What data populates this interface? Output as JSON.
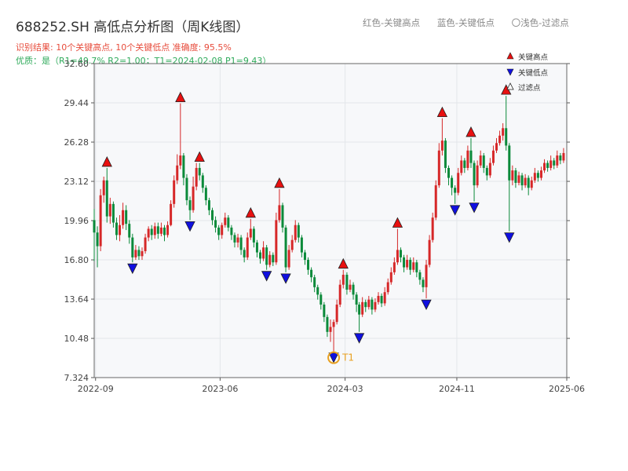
{
  "title": "688252.SH 高低点分析图（周K线图）",
  "info_line1": "识别结果: 10个关键高点, 10个关键低点  准确度: 95.5%",
  "info_line2": "优质：是（R1=49.7%  R2=1.00；T1=2024-02-08 P1=9.43）",
  "top_legend": [
    "红色-关键高点",
    "蓝色-关键低点",
    "〇浅色-过滤点"
  ],
  "colors": {
    "up": "#d62728",
    "down": "#0b8a3a",
    "high": "#e81010",
    "low": "#1010e0",
    "t1": "#e8a020",
    "bg": "#f7f8fa",
    "grid": "#e3e6ea"
  },
  "chart_data": {
    "type": "candlestick",
    "frequency": "weekly",
    "ylim": [
      7.324,
      32.6
    ],
    "y_ticks": [
      "7.324",
      "10.48",
      "13.64",
      "16.80",
      "19.96",
      "23.12",
      "26.28",
      "29.44",
      "32.60"
    ],
    "x_ticks": [
      "2022-09",
      "2023-06",
      "2024-03",
      "2024-11",
      "2025-06"
    ],
    "x_range": [
      "2022-08-29",
      "2025-06-30"
    ],
    "legend": [
      {
        "name": "关键高点",
        "marker": "red-up-triangle"
      },
      {
        "name": "关键低点",
        "marker": "blue-down-triangle"
      },
      {
        "name": "过滤点",
        "marker": "hollow-triangle"
      }
    ],
    "legend_position": "top-right",
    "key_highs": [
      {
        "date": "2022-09-26",
        "price": 24.2
      },
      {
        "date": "2023-03-06",
        "price": 29.4
      },
      {
        "date": "2023-04-17",
        "price": 24.6
      },
      {
        "date": "2023-08-07",
        "price": 20.1
      },
      {
        "date": "2023-10-09",
        "price": 22.5
      },
      {
        "date": "2024-02-26",
        "price": 16.0
      },
      {
        "date": "2024-06-24",
        "price": 19.3
      },
      {
        "date": "2024-09-30",
        "price": 28.2
      },
      {
        "date": "2024-12-02",
        "price": 26.6
      },
      {
        "date": "2025-02-17",
        "price": 30.0
      }
    ],
    "key_lows": [
      {
        "date": "2022-11-21",
        "price": 16.6
      },
      {
        "date": "2023-03-27",
        "price": 20.0
      },
      {
        "date": "2023-09-11",
        "price": 16.0
      },
      {
        "date": "2023-10-23",
        "price": 15.8
      },
      {
        "date": "2024-02-05",
        "price": 9.43
      },
      {
        "date": "2024-04-01",
        "price": 11.0
      },
      {
        "date": "2024-08-26",
        "price": 13.7
      },
      {
        "date": "2024-10-28",
        "price": 21.3
      },
      {
        "date": "2024-12-09",
        "price": 21.5
      },
      {
        "date": "2025-02-24",
        "price": 19.1
      }
    ],
    "t1": {
      "label": "T1",
      "date": "2024-02-05",
      "price": 9.43
    },
    "candles": [
      [
        "2022-08-29",
        20.0,
        19.0,
        20.9,
        16.7
      ],
      [
        "2022-09-05",
        19.0,
        17.9,
        19.5,
        16.2
      ],
      [
        "2022-09-12",
        17.9,
        22.0,
        22.5,
        17.5
      ],
      [
        "2022-09-19",
        22.0,
        23.2,
        23.5,
        21.4
      ],
      [
        "2022-09-26",
        23.2,
        20.3,
        24.2,
        19.8
      ],
      [
        "2022-10-03",
        20.3,
        21.3,
        21.8,
        19.7
      ],
      [
        "2022-10-10",
        21.3,
        19.8,
        21.5,
        19.4
      ],
      [
        "2022-10-17",
        19.8,
        18.8,
        20.2,
        18.4
      ],
      [
        "2022-10-24",
        18.8,
        19.6,
        20.4,
        18.3
      ],
      [
        "2022-10-31",
        19.6,
        20.8,
        21.4,
        19.3
      ],
      [
        "2022-11-07",
        20.8,
        19.7,
        21.2,
        19.2
      ],
      [
        "2022-11-14",
        19.7,
        18.6,
        20.0,
        18.1
      ],
      [
        "2022-11-21",
        18.6,
        17.0,
        18.9,
        16.6
      ],
      [
        "2022-11-28",
        17.0,
        17.6,
        18.0,
        16.8
      ],
      [
        "2022-12-05",
        17.6,
        17.1,
        17.9,
        16.8
      ],
      [
        "2022-12-12",
        17.1,
        17.5,
        17.8,
        16.8
      ],
      [
        "2022-12-19",
        17.5,
        18.6,
        18.9,
        17.3
      ],
      [
        "2022-12-26",
        18.6,
        19.3,
        19.5,
        18.3
      ],
      [
        "2023-01-02",
        19.3,
        18.8,
        19.6,
        18.4
      ],
      [
        "2023-01-09",
        18.8,
        19.5,
        19.8,
        18.5
      ],
      [
        "2023-01-16",
        19.5,
        18.9,
        19.8,
        18.5
      ],
      [
        "2023-01-23",
        18.9,
        19.4,
        19.8,
        18.7
      ],
      [
        "2023-01-30",
        19.4,
        18.8,
        19.6,
        18.3
      ],
      [
        "2023-02-06",
        18.8,
        19.6,
        19.9,
        18.6
      ],
      [
        "2023-02-13",
        19.6,
        21.3,
        21.6,
        19.5
      ],
      [
        "2023-02-20",
        21.3,
        23.2,
        23.6,
        21.0
      ],
      [
        "2023-02-27",
        23.2,
        24.4,
        25.3,
        22.9
      ],
      [
        "2023-03-06",
        24.4,
        25.2,
        29.4,
        24.1
      ],
      [
        "2023-03-13",
        25.2,
        23.4,
        25.4,
        22.8
      ],
      [
        "2023-03-20",
        23.4,
        21.6,
        23.7,
        21.2
      ],
      [
        "2023-03-27",
        21.6,
        20.8,
        21.9,
        20.0
      ],
      [
        "2023-04-03",
        20.8,
        22.7,
        23.5,
        20.6
      ],
      [
        "2023-04-10",
        22.7,
        24.2,
        24.6,
        22.4
      ],
      [
        "2023-04-17",
        24.2,
        23.6,
        24.6,
        23.2
      ],
      [
        "2023-04-24",
        23.6,
        22.6,
        23.8,
        22.2
      ],
      [
        "2023-05-01",
        22.6,
        21.6,
        22.8,
        21.2
      ],
      [
        "2023-05-08",
        21.6,
        20.8,
        21.8,
        20.4
      ],
      [
        "2023-05-15",
        20.8,
        20.0,
        21.0,
        19.6
      ],
      [
        "2023-05-22",
        20.0,
        19.4,
        20.3,
        19.0
      ],
      [
        "2023-05-29",
        19.4,
        18.8,
        19.6,
        18.4
      ],
      [
        "2023-06-05",
        18.8,
        19.6,
        19.8,
        18.5
      ],
      [
        "2023-06-12",
        19.6,
        20.2,
        20.6,
        19.4
      ],
      [
        "2023-06-19",
        20.2,
        19.4,
        20.4,
        19.1
      ],
      [
        "2023-06-26",
        19.4,
        18.8,
        19.6,
        18.4
      ],
      [
        "2023-07-03",
        18.8,
        18.2,
        19.0,
        17.8
      ],
      [
        "2023-07-10",
        18.2,
        18.6,
        18.9,
        17.8
      ],
      [
        "2023-07-17",
        18.6,
        17.6,
        18.8,
        17.2
      ],
      [
        "2023-07-24",
        17.6,
        17.0,
        17.8,
        16.6
      ],
      [
        "2023-07-31",
        17.0,
        18.6,
        19.0,
        16.8
      ],
      [
        "2023-08-07",
        18.6,
        19.3,
        20.1,
        18.4
      ],
      [
        "2023-08-14",
        19.3,
        18.2,
        19.5,
        17.8
      ],
      [
        "2023-08-21",
        18.2,
        17.4,
        18.4,
        17.0
      ],
      [
        "2023-08-28",
        17.4,
        16.9,
        17.6,
        16.5
      ],
      [
        "2023-09-04",
        16.9,
        17.8,
        18.3,
        16.7
      ],
      [
        "2023-09-11",
        17.8,
        16.4,
        18.0,
        16.0
      ],
      [
        "2023-09-18",
        16.4,
        17.2,
        17.5,
        16.2
      ],
      [
        "2023-09-25",
        17.2,
        16.6,
        17.4,
        16.3
      ],
      [
        "2023-10-02",
        16.6,
        20.0,
        20.6,
        16.4
      ],
      [
        "2023-10-09",
        20.0,
        21.2,
        22.5,
        19.8
      ],
      [
        "2023-10-16",
        21.2,
        19.4,
        21.4,
        19.0
      ],
      [
        "2023-10-23",
        19.4,
        16.2,
        19.6,
        15.8
      ],
      [
        "2023-10-30",
        16.2,
        17.6,
        18.0,
        16.0
      ],
      [
        "2023-11-06",
        17.6,
        18.4,
        18.8,
        17.4
      ],
      [
        "2023-11-13",
        18.4,
        19.6,
        20.0,
        18.2
      ],
      [
        "2023-11-20",
        19.6,
        18.6,
        19.8,
        18.2
      ],
      [
        "2023-11-27",
        18.6,
        17.4,
        18.8,
        17.0
      ],
      [
        "2023-12-04",
        17.4,
        16.8,
        17.6,
        16.4
      ],
      [
        "2023-12-11",
        16.8,
        16.0,
        17.0,
        15.6
      ],
      [
        "2023-12-18",
        16.0,
        15.4,
        16.2,
        15.0
      ],
      [
        "2023-12-25",
        15.4,
        14.6,
        15.6,
        14.2
      ],
      [
        "2024-01-01",
        14.6,
        14.0,
        14.8,
        13.6
      ],
      [
        "2024-01-08",
        14.0,
        13.2,
        14.2,
        12.8
      ],
      [
        "2024-01-15",
        13.2,
        12.2,
        13.4,
        11.8
      ],
      [
        "2024-01-22",
        12.2,
        11.0,
        12.4,
        10.6
      ],
      [
        "2024-01-29",
        11.0,
        11.4,
        12.0,
        10.2
      ],
      [
        "2024-02-05",
        11.4,
        11.8,
        12.0,
        9.43
      ],
      [
        "2024-02-12",
        11.8,
        13.2,
        13.6,
        11.6
      ],
      [
        "2024-02-19",
        13.2,
        14.8,
        15.2,
        13.0
      ],
      [
        "2024-02-26",
        14.8,
        15.6,
        16.0,
        14.5
      ],
      [
        "2024-03-05",
        15.6,
        14.4,
        15.8,
        14.0
      ],
      [
        "2024-03-12",
        14.4,
        14.8,
        15.2,
        14.2
      ],
      [
        "2024-03-19",
        14.8,
        14.0,
        15.0,
        13.6
      ],
      [
        "2024-03-26",
        14.0,
        13.2,
        14.2,
        12.6
      ],
      [
        "2024-04-01",
        13.2,
        12.4,
        13.4,
        11.0
      ],
      [
        "2024-04-08",
        12.4,
        13.4,
        13.8,
        12.2
      ],
      [
        "2024-04-15",
        13.4,
        13.0,
        13.6,
        12.6
      ],
      [
        "2024-04-22",
        13.0,
        13.6,
        13.9,
        12.8
      ],
      [
        "2024-04-29",
        13.6,
        12.8,
        13.8,
        12.4
      ],
      [
        "2024-05-06",
        12.8,
        13.4,
        13.7,
        12.6
      ],
      [
        "2024-05-13",
        13.4,
        13.9,
        14.2,
        13.2
      ],
      [
        "2024-05-20",
        13.9,
        13.3,
        14.1,
        13.0
      ],
      [
        "2024-05-27",
        13.3,
        14.2,
        14.6,
        13.1
      ],
      [
        "2024-06-03",
        14.2,
        15.0,
        15.3,
        14.0
      ],
      [
        "2024-06-10",
        15.0,
        15.8,
        16.2,
        14.8
      ],
      [
        "2024-06-17",
        15.8,
        16.6,
        17.0,
        15.6
      ],
      [
        "2024-06-24",
        16.6,
        17.6,
        19.3,
        16.4
      ],
      [
        "2024-07-01",
        17.6,
        17.0,
        17.8,
        16.6
      ],
      [
        "2024-07-08",
        17.0,
        16.2,
        17.2,
        15.8
      ],
      [
        "2024-07-15",
        16.2,
        16.8,
        17.2,
        16.0
      ],
      [
        "2024-07-22",
        16.8,
        16.0,
        17.0,
        15.6
      ],
      [
        "2024-07-29",
        16.0,
        16.6,
        17.0,
        15.8
      ],
      [
        "2024-08-05",
        16.6,
        15.8,
        16.8,
        15.4
      ],
      [
        "2024-08-12",
        15.8,
        15.2,
        16.0,
        14.8
      ],
      [
        "2024-08-19",
        15.2,
        14.6,
        15.4,
        14.2
      ],
      [
        "2024-08-26",
        14.6,
        16.4,
        16.8,
        13.7
      ],
      [
        "2024-09-02",
        16.4,
        18.4,
        18.8,
        16.2
      ],
      [
        "2024-09-09",
        18.4,
        20.2,
        20.6,
        18.2
      ],
      [
        "2024-09-16",
        20.2,
        22.8,
        23.2,
        20.0
      ],
      [
        "2024-09-23",
        22.8,
        25.6,
        26.2,
        22.6
      ],
      [
        "2024-09-30",
        25.6,
        26.4,
        28.2,
        25.2
      ],
      [
        "2024-10-07",
        26.4,
        24.2,
        26.6,
        23.8
      ],
      [
        "2024-10-14",
        24.2,
        23.4,
        24.4,
        22.8
      ],
      [
        "2024-10-21",
        23.4,
        22.6,
        23.6,
        22.0
      ],
      [
        "2024-10-28",
        22.6,
        22.2,
        22.8,
        21.3
      ],
      [
        "2024-11-04",
        22.2,
        23.8,
        24.2,
        22.0
      ],
      [
        "2024-11-11",
        23.8,
        24.8,
        25.2,
        23.6
      ],
      [
        "2024-11-18",
        24.8,
        24.2,
        25.0,
        23.8
      ],
      [
        "2024-11-25",
        24.2,
        25.6,
        26.0,
        24.0
      ],
      [
        "2024-12-02",
        25.6,
        24.6,
        26.6,
        24.2
      ],
      [
        "2024-12-09",
        24.6,
        22.8,
        24.8,
        21.5
      ],
      [
        "2024-12-16",
        22.8,
        24.4,
        24.8,
        22.6
      ],
      [
        "2024-12-23",
        24.4,
        25.2,
        25.6,
        24.2
      ],
      [
        "2024-12-30",
        25.2,
        24.2,
        25.4,
        23.8
      ],
      [
        "2025-01-06",
        24.2,
        23.6,
        24.4,
        23.2
      ],
      [
        "2025-01-13",
        23.6,
        24.6,
        25.0,
        23.4
      ],
      [
        "2025-01-20",
        24.6,
        25.6,
        26.0,
        24.4
      ],
      [
        "2025-01-27",
        25.6,
        26.2,
        26.6,
        25.4
      ],
      [
        "2025-02-03",
        26.2,
        26.8,
        27.2,
        26.0
      ],
      [
        "2025-02-10",
        26.8,
        27.4,
        27.8,
        26.4
      ],
      [
        "2025-02-17",
        27.4,
        26.0,
        30.0,
        25.6
      ],
      [
        "2025-02-24",
        26.0,
        23.2,
        26.2,
        19.1
      ],
      [
        "2025-03-03",
        23.2,
        24.0,
        24.4,
        22.8
      ],
      [
        "2025-03-10",
        24.0,
        23.0,
        24.2,
        22.6
      ],
      [
        "2025-03-17",
        23.0,
        23.6,
        23.9,
        22.8
      ],
      [
        "2025-03-24",
        23.6,
        22.8,
        23.8,
        22.4
      ],
      [
        "2025-03-31",
        22.8,
        23.4,
        23.7,
        22.6
      ],
      [
        "2025-04-07",
        23.4,
        22.6,
        23.6,
        22.0
      ],
      [
        "2025-04-14",
        22.6,
        23.2,
        23.5,
        22.4
      ],
      [
        "2025-04-21",
        23.2,
        23.8,
        24.2,
        23.0
      ],
      [
        "2025-04-28",
        23.8,
        23.4,
        24.0,
        23.1
      ],
      [
        "2025-05-05",
        23.4,
        24.0,
        24.3,
        23.2
      ],
      [
        "2025-05-12",
        24.0,
        24.6,
        24.9,
        23.8
      ],
      [
        "2025-05-19",
        24.6,
        24.2,
        24.8,
        23.9
      ],
      [
        "2025-05-26",
        24.2,
        24.8,
        25.2,
        24.0
      ],
      [
        "2025-06-02",
        24.8,
        24.4,
        25.0,
        24.1
      ],
      [
        "2025-06-09",
        24.4,
        25.2,
        25.6,
        24.2
      ],
      [
        "2025-06-16",
        25.2,
        24.8,
        25.4,
        24.5
      ],
      [
        "2025-06-23",
        24.8,
        25.4,
        25.8,
        24.6
      ]
    ]
  }
}
